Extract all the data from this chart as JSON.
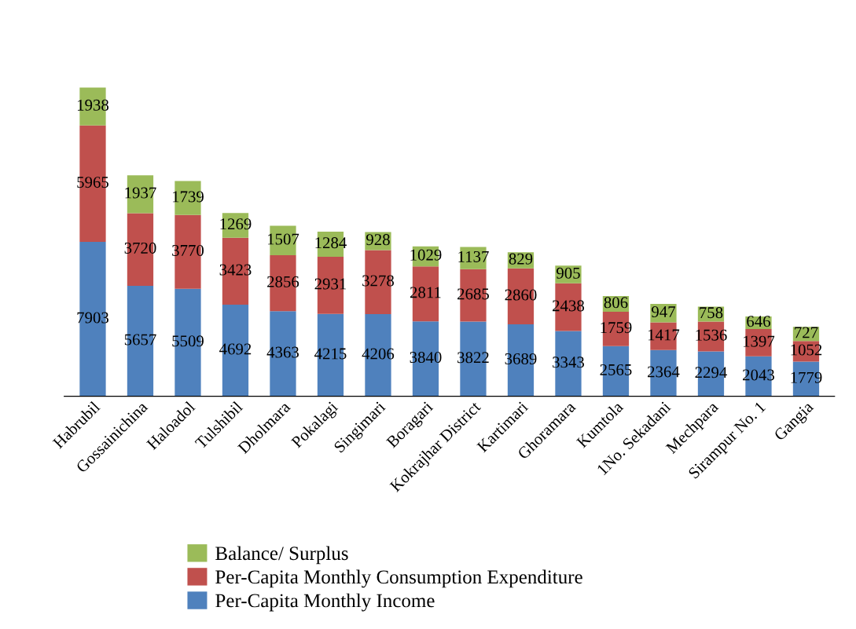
{
  "chart_data": {
    "type": "bar",
    "stacked": true,
    "data_labels": true,
    "legend": "bottom",
    "grid": false,
    "tick_labels": "x",
    "categories": [
      "Habrubil",
      "Gossainichina",
      "Haloadol",
      "Tulshibil",
      "Dholmara",
      "Pokalagi",
      "Singimari",
      "Boragari",
      "Kokrajhar District",
      "Kartimari",
      "Ghoramara",
      "Kumtola",
      "1No. Sekadani",
      "Mechpara",
      "Sirampur No. 1",
      "Gangia"
    ],
    "series": [
      {
        "name": "Per-Capita Monthly Income",
        "color": "#4f81bd",
        "values": [
          7903,
          5657,
          5509,
          4692,
          4363,
          4215,
          4206,
          3840,
          3822,
          3689,
          3343,
          2565,
          2364,
          2294,
          2043,
          1779
        ]
      },
      {
        "name": "Per-Capita Monthly Consumption Expenditure",
        "color": "#c0504d",
        "values": [
          5965,
          3720,
          3770,
          3423,
          2856,
          2931,
          3278,
          2811,
          2685,
          2860,
          2438,
          1759,
          1417,
          1536,
          1397,
          1052
        ]
      },
      {
        "name": "Balance/ Surplus",
        "color": "#9bbb59",
        "values": [
          1938,
          1937,
          1739,
          1269,
          1507,
          1284,
          928,
          1029,
          1137,
          829,
          905,
          806,
          947,
          758,
          646,
          727
        ]
      }
    ]
  }
}
